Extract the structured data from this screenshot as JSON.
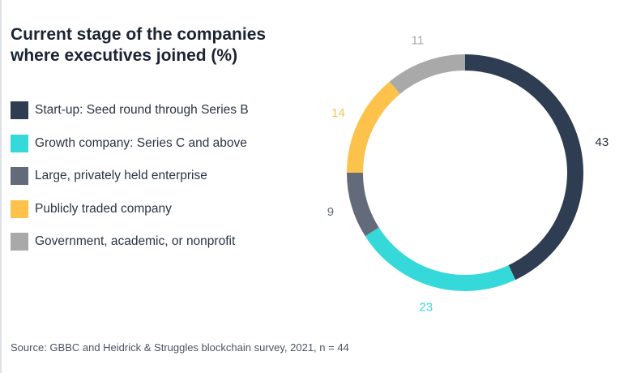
{
  "title_lines": [
    "Current stage of the companies",
    "where executives joined (%)"
  ],
  "source": "Source: GBBC and Heidrick & Struggles blockchain survey, 2021, n = 44",
  "chart_data": {
    "type": "pie",
    "variant": "donut",
    "title": "Current stage of the companies where executives joined (%)",
    "unit": "%",
    "start": "12 o'clock, clockwise",
    "slices": [
      {
        "label": "Start-up: Seed round through Series B",
        "value": 43,
        "color": "#2e3d52"
      },
      {
        "label": "Growth company: Series C and above",
        "value": 23,
        "color": "#35d9d9"
      },
      {
        "label": "Large, privately held enterprise",
        "value": 9,
        "color": "#636a7a"
      },
      {
        "label": "Publicly traded company",
        "value": 14,
        "color": "#fcc24c"
      },
      {
        "label": "Government, academic, or nonprofit",
        "value": 11,
        "color": "#a9a9a9"
      }
    ]
  }
}
